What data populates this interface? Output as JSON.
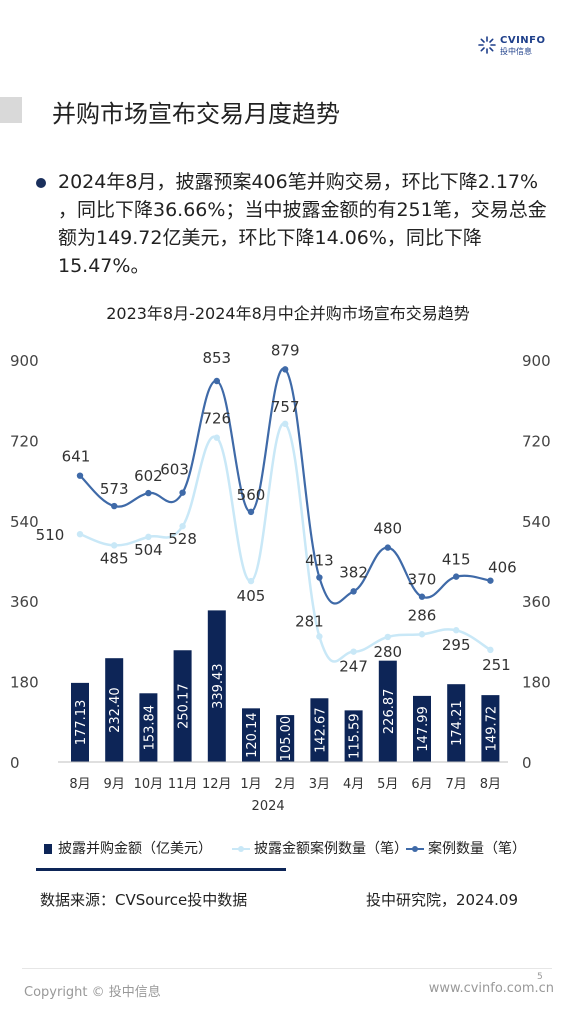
{
  "logo": {
    "brand": "CVINFO",
    "brand_cn": "投中信息"
  },
  "page_title": "并购市场宣布交易月度趋势",
  "bullet_text": "2024年8月，披露预案406笔并购交易，环比下降2.17% ，同比下降36.66%；当中披露金额的有251笔，交易总金额为149.72亿美元，环比下降14.06%，同比下降15.47%。",
  "chart_data": {
    "type": "bar",
    "title": "2023年8月-2024年8月中企并购市场宣布交易趋势",
    "categories": [
      "8月",
      "9月",
      "10月",
      "11月",
      "12月",
      "1月",
      "2月",
      "3月",
      "4月",
      "5月",
      "6月",
      "7月",
      "8月"
    ],
    "year_label": "2024",
    "ylim": [
      0,
      900
    ],
    "ticks": [
      0,
      180,
      360,
      540,
      720,
      900
    ],
    "tick_labels": [
      "0",
      "180",
      "360",
      "540",
      "720",
      "900"
    ],
    "series": [
      {
        "name": "披露并购金额（亿美元）",
        "type": "bar",
        "color": "#0d2557",
        "values": [
          177.13,
          232.4,
          153.84,
          250.17,
          339.43,
          120.14,
          105.0,
          142.67,
          115.59,
          226.87,
          147.99,
          174.21,
          149.72
        ],
        "labels": [
          "177.13",
          "232.40",
          "153.84",
          "250.17",
          "339.43",
          "120.14",
          "105.00",
          "142.67",
          "115.59",
          "226.87",
          "147.99",
          "174.21",
          "149.72"
        ]
      },
      {
        "name": "披露金额案例数量（笔）",
        "type": "line",
        "color": "#c9e8f7",
        "values": [
          510,
          485,
          504,
          528,
          726,
          405,
          757,
          281,
          247,
          280,
          286,
          295,
          251
        ]
      },
      {
        "name": "案例数量（笔）",
        "type": "line",
        "color": "#3f6aa8",
        "values": [
          641,
          573,
          602,
          603,
          853,
          560,
          879,
          413,
          382,
          480,
          370,
          415,
          406
        ]
      }
    ]
  },
  "legend": {
    "bar": "披露并购金额（亿美元）",
    "light": "披露金额案例数量（笔）",
    "dark": "案例数量（笔）"
  },
  "footer": {
    "source": "数据来源：CVSource投中数据",
    "org": "投中研究院，2024.09",
    "copyright": "Copyright © 投中信息",
    "site": "www.cvinfo.com.cn",
    "page": "5"
  }
}
